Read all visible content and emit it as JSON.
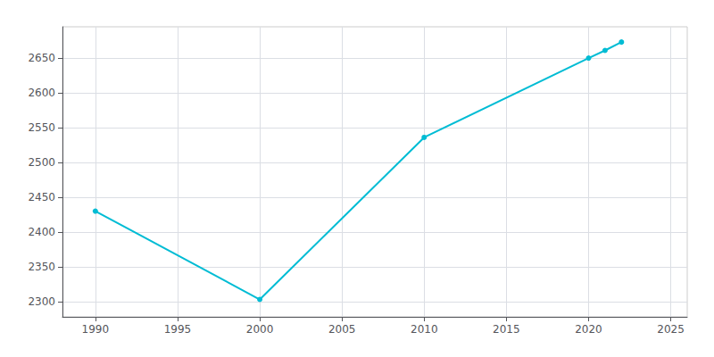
{
  "chart_data": {
    "type": "line",
    "x": [
      1990,
      2000,
      2010,
      2020,
      2021,
      2022
    ],
    "values": [
      2430,
      2303,
      2536,
      2650,
      2661,
      2673
    ],
    "color": "#00BCD4",
    "marker": "circle",
    "xlim": [
      1988,
      2026
    ],
    "ylim": [
      2278,
      2695
    ],
    "xticks": [
      1990,
      1995,
      2000,
      2005,
      2010,
      2015,
      2020,
      2025
    ],
    "yticks": [
      2300,
      2350,
      2400,
      2450,
      2500,
      2550,
      2600,
      2650
    ],
    "grid": true
  }
}
